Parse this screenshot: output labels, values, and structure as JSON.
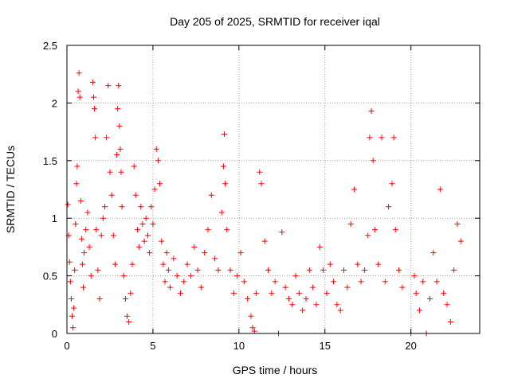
{
  "chart_data": {
    "type": "scatter",
    "title": "Day 205 of 2025, SRMTID for receiver iqal",
    "xlabel": "GPS time / hours",
    "ylabel": "SRMTID / TECUs",
    "xlim": [
      0,
      24
    ],
    "ylim": [
      0,
      2.5
    ],
    "xticks": [
      0,
      5,
      10,
      15,
      20
    ],
    "xtick_labels": [
      "0",
      "5",
      "10",
      "15",
      "20"
    ],
    "yticks": [
      0,
      0.5,
      1,
      1.5,
      2,
      2.5
    ],
    "ytick_labels": [
      "0",
      "0.5",
      "1",
      "1.5",
      "2",
      "2.5"
    ],
    "grid": true,
    "marker": "+",
    "series": [
      {
        "name": "SRMTID",
        "color": "#ff0000",
        "points": [
          [
            0.05,
            1.12
          ],
          [
            0.1,
            0.85
          ],
          [
            0.15,
            0.62
          ],
          [
            0.2,
            0.45
          ],
          [
            0.25,
            0.3
          ],
          [
            0.3,
            0.15
          ],
          [
            0.35,
            0.05
          ],
          [
            0.4,
            0.22
          ],
          [
            0.45,
            0.55
          ],
          [
            0.5,
            0.95
          ],
          [
            0.55,
            1.3
          ],
          [
            0.6,
            1.45
          ],
          [
            0.65,
            2.1
          ],
          [
            0.7,
            2.26
          ],
          [
            0.75,
            2.05
          ],
          [
            0.8,
            1.15
          ],
          [
            0.85,
            0.82
          ],
          [
            0.9,
            0.6
          ],
          [
            0.95,
            0.4
          ],
          [
            1.0,
            0.7
          ],
          [
            1.1,
            0.9
          ],
          [
            1.2,
            1.05
          ],
          [
            1.3,
            0.75
          ],
          [
            1.4,
            0.5
          ],
          [
            1.5,
            2.18
          ],
          [
            1.55,
            2.05
          ],
          [
            1.6,
            1.95
          ],
          [
            1.65,
            1.7
          ],
          [
            1.7,
            0.9
          ],
          [
            1.8,
            0.55
          ],
          [
            1.9,
            0.3
          ],
          [
            2.0,
            0.85
          ],
          [
            2.1,
            1.0
          ],
          [
            2.2,
            1.1
          ],
          [
            2.3,
            1.7
          ],
          [
            2.4,
            2.15
          ],
          [
            2.5,
            1.4
          ],
          [
            2.6,
            1.2
          ],
          [
            2.7,
            0.85
          ],
          [
            2.8,
            0.6
          ],
          [
            2.9,
            1.55
          ],
          [
            2.95,
            1.95
          ],
          [
            3.0,
            2.15
          ],
          [
            3.05,
            1.8
          ],
          [
            3.1,
            1.6
          ],
          [
            3.15,
            1.4
          ],
          [
            3.2,
            1.1
          ],
          [
            3.3,
            0.5
          ],
          [
            3.4,
            0.3
          ],
          [
            3.5,
            0.15
          ],
          [
            3.6,
            0.1
          ],
          [
            3.7,
            0.35
          ],
          [
            3.8,
            0.6
          ],
          [
            3.9,
            1.45
          ],
          [
            4.0,
            1.2
          ],
          [
            4.1,
            0.9
          ],
          [
            4.2,
            0.75
          ],
          [
            4.3,
            1.1
          ],
          [
            4.4,
            0.95
          ],
          [
            4.5,
            0.8
          ],
          [
            4.6,
            1.0
          ],
          [
            4.7,
            0.85
          ],
          [
            4.8,
            0.7
          ],
          [
            4.9,
            1.1
          ],
          [
            5.0,
            0.95
          ],
          [
            5.1,
            1.25
          ],
          [
            5.2,
            1.6
          ],
          [
            5.3,
            1.5
          ],
          [
            5.4,
            1.3
          ],
          [
            5.5,
            0.8
          ],
          [
            5.6,
            0.6
          ],
          [
            5.7,
            0.45
          ],
          [
            5.8,
            0.7
          ],
          [
            5.9,
            0.55
          ],
          [
            6.0,
            0.4
          ],
          [
            6.2,
            0.65
          ],
          [
            6.4,
            0.5
          ],
          [
            6.6,
            0.35
          ],
          [
            6.8,
            0.45
          ],
          [
            7.0,
            0.6
          ],
          [
            7.2,
            0.5
          ],
          [
            7.4,
            0.75
          ],
          [
            7.6,
            0.55
          ],
          [
            7.8,
            0.4
          ],
          [
            8.0,
            0.7
          ],
          [
            8.2,
            0.9
          ],
          [
            8.4,
            1.2
          ],
          [
            8.6,
            0.65
          ],
          [
            8.8,
            0.55
          ],
          [
            9.0,
            1.05
          ],
          [
            9.1,
            1.45
          ],
          [
            9.15,
            1.73
          ],
          [
            9.2,
            1.3
          ],
          [
            9.3,
            0.9
          ],
          [
            9.5,
            0.55
          ],
          [
            9.7,
            0.35
          ],
          [
            9.9,
            0.5
          ],
          [
            10.1,
            0.7
          ],
          [
            10.3,
            0.45
          ],
          [
            10.5,
            0.3
          ],
          [
            10.7,
            0.15
          ],
          [
            10.8,
            0.05
          ],
          [
            10.9,
            0.02
          ],
          [
            11.0,
            0.35
          ],
          [
            11.2,
            1.4
          ],
          [
            11.3,
            1.3
          ],
          [
            11.5,
            0.8
          ],
          [
            11.7,
            0.55
          ],
          [
            11.9,
            0.35
          ],
          [
            12.1,
            0.45
          ],
          [
            12.3,
            0.0
          ],
          [
            12.5,
            0.88
          ],
          [
            12.7,
            0.4
          ],
          [
            12.9,
            0.3
          ],
          [
            13.1,
            0.25
          ],
          [
            13.3,
            0.5
          ],
          [
            13.5,
            0.35
          ],
          [
            13.7,
            0.2
          ],
          [
            13.9,
            0.3
          ],
          [
            14.1,
            0.55
          ],
          [
            14.3,
            0.4
          ],
          [
            14.5,
            0.25
          ],
          [
            14.7,
            0.75
          ],
          [
            14.9,
            0.55
          ],
          [
            15.1,
            0.35
          ],
          [
            15.3,
            0.6
          ],
          [
            15.5,
            0.45
          ],
          [
            15.7,
            0.25
          ],
          [
            15.9,
            0.2
          ],
          [
            16.1,
            0.55
          ],
          [
            16.3,
            0.4
          ],
          [
            16.5,
            0.95
          ],
          [
            16.7,
            1.25
          ],
          [
            16.9,
            0.6
          ],
          [
            17.1,
            0.45
          ],
          [
            17.3,
            0.55
          ],
          [
            17.5,
            0.85
          ],
          [
            17.6,
            1.7
          ],
          [
            17.7,
            1.93
          ],
          [
            17.8,
            1.5
          ],
          [
            17.9,
            0.9
          ],
          [
            18.1,
            0.6
          ],
          [
            18.3,
            1.7
          ],
          [
            18.5,
            0.45
          ],
          [
            18.7,
            1.1
          ],
          [
            18.9,
            1.3
          ],
          [
            19.0,
            1.7
          ],
          [
            19.1,
            0.9
          ],
          [
            19.3,
            0.55
          ],
          [
            19.5,
            0.4
          ],
          [
            20.0,
            0.0
          ],
          [
            20.2,
            0.5
          ],
          [
            20.3,
            0.35
          ],
          [
            20.5,
            0.2
          ],
          [
            20.7,
            0.45
          ],
          [
            20.9,
            0.0
          ],
          [
            21.1,
            0.3
          ],
          [
            21.3,
            0.7
          ],
          [
            21.5,
            0.45
          ],
          [
            21.7,
            1.25
          ],
          [
            21.9,
            0.35
          ],
          [
            22.1,
            0.25
          ],
          [
            22.3,
            0.1
          ],
          [
            22.5,
            0.55
          ],
          [
            22.7,
            0.95
          ],
          [
            22.9,
            0.8
          ]
        ]
      }
    ]
  }
}
